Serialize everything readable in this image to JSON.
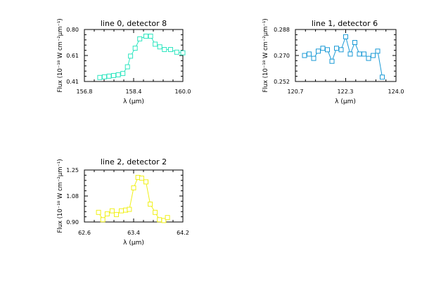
{
  "chart_data": [
    {
      "type": "line",
      "title": "line 0, detector 8",
      "xlabel": "λ (μm)",
      "ylabel": "Flux (10⁻¹⁸ W cm⁻²μm⁻¹)",
      "xlim": [
        156.8,
        160.0
      ],
      "ylim": [
        0.41,
        0.8
      ],
      "xticks": [
        "156.8",
        "158.4",
        "160.0"
      ],
      "yticks": [
        "0.41",
        "0.61",
        "0.80"
      ],
      "color": "#2ee6c0",
      "marker": "square",
      "series": [
        {
          "x": [
            157.3,
            157.45,
            157.6,
            157.75,
            157.9,
            158.05,
            158.2,
            158.3,
            158.45,
            158.6,
            158.8,
            158.95,
            159.1,
            159.25,
            159.4,
            159.6,
            159.8,
            160.0
          ],
          "y": [
            0.44,
            0.445,
            0.45,
            0.455,
            0.46,
            0.47,
            0.52,
            0.6,
            0.66,
            0.73,
            0.75,
            0.75,
            0.69,
            0.67,
            0.65,
            0.65,
            0.63,
            0.625
          ]
        }
      ]
    },
    {
      "type": "line",
      "title": "line 1, detector 6",
      "xlabel": "λ (μm)",
      "ylabel": "Flux (10⁻¹⁸ W cm⁻²μm⁻¹)",
      "xlim": [
        120.7,
        124.0
      ],
      "ylim": [
        0.252,
        0.288
      ],
      "xticks": [
        "120.7",
        "122.3",
        "124.0"
      ],
      "yticks": [
        "0.252",
        "0.270",
        "0.288"
      ],
      "color": "#1a9ad6",
      "marker": "square",
      "series": [
        {
          "x": [
            121.0,
            121.15,
            121.3,
            121.45,
            121.6,
            121.75,
            121.9,
            122.05,
            122.2,
            122.35,
            122.5,
            122.65,
            122.8,
            122.95,
            123.1,
            123.25,
            123.4,
            123.55
          ],
          "y": [
            0.27,
            0.271,
            0.268,
            0.273,
            0.275,
            0.274,
            0.266,
            0.275,
            0.274,
            0.283,
            0.271,
            0.279,
            0.271,
            0.271,
            0.268,
            0.27,
            0.273,
            0.255
          ]
        }
      ]
    },
    {
      "type": "line",
      "title": "line 2, detector 2",
      "xlabel": "λ (μm)",
      "ylabel": "Flux (10⁻¹⁸ W cm⁻²μm⁻¹)",
      "xlim": [
        62.6,
        64.2
      ],
      "ylim": [
        0.9,
        1.25
      ],
      "xticks": [
        "62.6",
        "63.4",
        "64.2"
      ],
      "yticks": [
        "0.90",
        "1.08",
        "1.25"
      ],
      "color": "#f0f018",
      "marker": "square",
      "series": [
        {
          "x": [
            62.83,
            62.9,
            62.97,
            63.05,
            63.12,
            63.2,
            63.27,
            63.33,
            63.4,
            63.47,
            63.53,
            63.6,
            63.67,
            63.75,
            63.82,
            63.89,
            63.95
          ],
          "y": [
            0.965,
            0.915,
            0.955,
            0.975,
            0.95,
            0.975,
            0.98,
            0.985,
            1.13,
            1.2,
            1.195,
            1.17,
            1.02,
            0.965,
            0.915,
            0.91,
            0.93
          ]
        }
      ]
    }
  ]
}
